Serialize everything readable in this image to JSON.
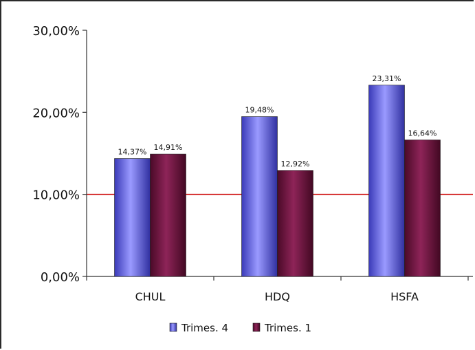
{
  "chart_data": {
    "type": "bar",
    "title": "",
    "xlabel": "",
    "ylabel": "",
    "categories": [
      "CHUL",
      "HDQ",
      "HSFA"
    ],
    "series": [
      {
        "name": "Trimes. 4",
        "values": [
          14.37,
          19.48,
          23.31
        ],
        "labels": [
          "14,37%",
          "19,48%",
          "23,31%"
        ],
        "color": "#6e6ef0"
      },
      {
        "name": "Trimes. 1",
        "values": [
          14.91,
          12.92,
          16.64
        ],
        "labels": [
          "14,91%",
          "12,92%",
          "16,64%"
        ],
        "color": "#7a1845"
      }
    ],
    "ylim": [
      0,
      30
    ],
    "yticks": [
      0,
      10,
      20,
      30
    ],
    "ytick_labels": [
      "0,00%",
      "10,00%",
      "20,00%",
      "30,00%"
    ],
    "reference_line": {
      "value": 10,
      "color": "#cc0000"
    },
    "grid": false,
    "legend_position": "bottom-center"
  }
}
